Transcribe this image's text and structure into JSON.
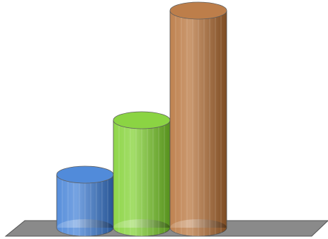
{
  "chart_data": {
    "type": "cylinder",
    "categories": [
      null,
      null,
      null
    ],
    "series": [
      {
        "color": "#3a7bd5",
        "values": [
          75,
          null,
          null
        ]
      },
      {
        "color": "#7ccf2a",
        "values": [
          null,
          152,
          null
        ]
      },
      {
        "color": "#b46d32",
        "values": [
          null,
          null,
          307
        ]
      }
    ]
  }
}
